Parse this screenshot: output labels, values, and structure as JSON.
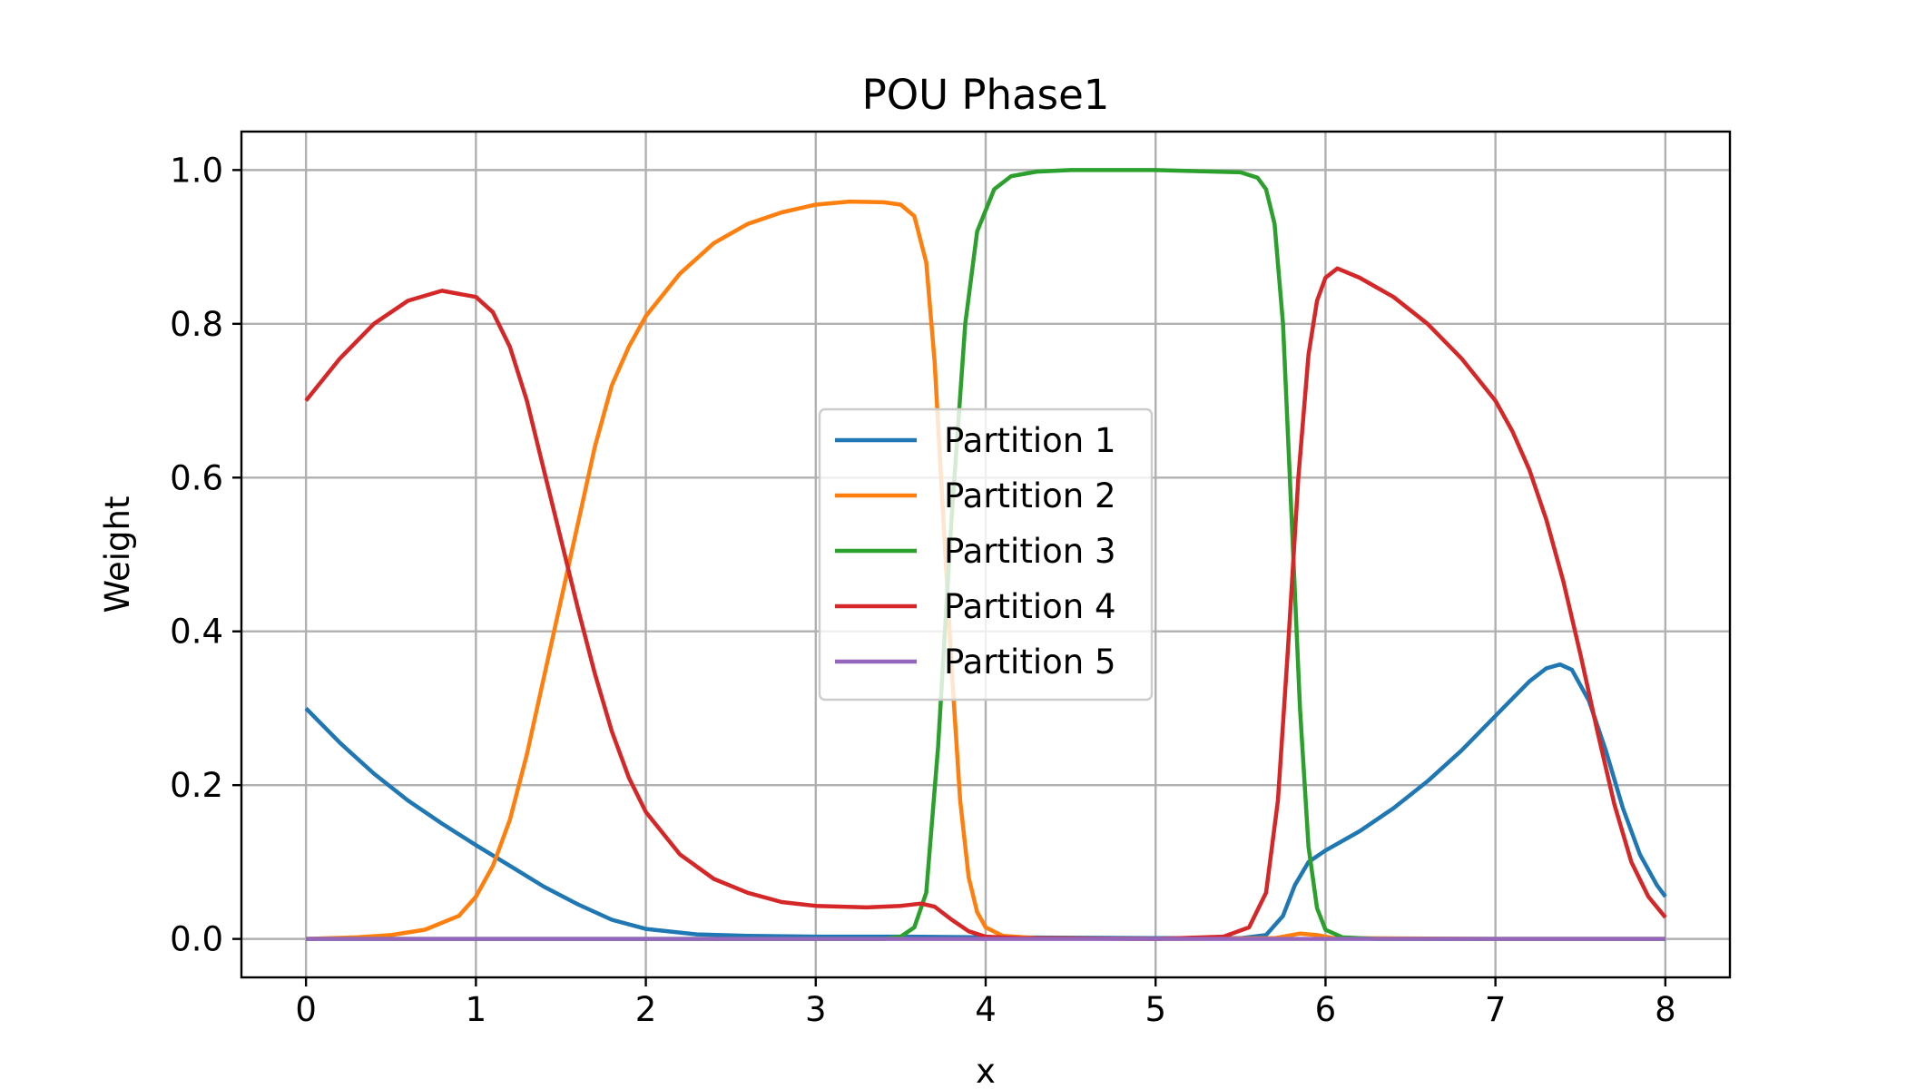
{
  "chart_data": {
    "type": "line",
    "title": "POU Phase1",
    "xlabel": "x",
    "ylabel": "Weight",
    "xlim": [
      -0.38,
      8.38
    ],
    "ylim": [
      -0.05,
      1.05
    ],
    "xticks": [
      0,
      1,
      2,
      3,
      4,
      5,
      6,
      7,
      8
    ],
    "xtick_labels": [
      "0",
      "1",
      "2",
      "3",
      "4",
      "5",
      "6",
      "7",
      "8"
    ],
    "yticks": [
      0.0,
      0.2,
      0.4,
      0.6,
      0.8,
      1.0
    ],
    "ytick_labels": [
      "0.0",
      "0.2",
      "0.4",
      "0.6",
      "0.8",
      "1.0"
    ],
    "grid": true,
    "legend_position": "center",
    "series": [
      {
        "name": "Partition 1",
        "color": "#1f77b4",
        "points": [
          [
            0,
            0.3
          ],
          [
            0.2,
            0.255
          ],
          [
            0.4,
            0.215
          ],
          [
            0.6,
            0.18
          ],
          [
            0.8,
            0.15
          ],
          [
            1.0,
            0.122
          ],
          [
            1.2,
            0.095
          ],
          [
            1.4,
            0.068
          ],
          [
            1.6,
            0.045
          ],
          [
            1.8,
            0.025
          ],
          [
            2.0,
            0.013
          ],
          [
            2.3,
            0.006
          ],
          [
            2.6,
            0.004
          ],
          [
            3.0,
            0.003
          ],
          [
            3.5,
            0.003
          ],
          [
            4.0,
            0.002
          ],
          [
            5.0,
            0.001
          ],
          [
            5.5,
            0.001
          ],
          [
            5.65,
            0.005
          ],
          [
            5.75,
            0.03
          ],
          [
            5.82,
            0.07
          ],
          [
            5.9,
            0.1
          ],
          [
            6.0,
            0.115
          ],
          [
            6.2,
            0.14
          ],
          [
            6.4,
            0.17
          ],
          [
            6.6,
            0.205
          ],
          [
            6.8,
            0.245
          ],
          [
            7.0,
            0.29
          ],
          [
            7.2,
            0.335
          ],
          [
            7.3,
            0.352
          ],
          [
            7.38,
            0.357
          ],
          [
            7.45,
            0.35
          ],
          [
            7.55,
            0.31
          ],
          [
            7.65,
            0.245
          ],
          [
            7.75,
            0.17
          ],
          [
            7.85,
            0.11
          ],
          [
            7.95,
            0.07
          ],
          [
            8.0,
            0.055
          ]
        ]
      },
      {
        "name": "Partition 2",
        "color": "#ff7f0e",
        "points": [
          [
            0,
            0.0
          ],
          [
            0.3,
            0.002
          ],
          [
            0.5,
            0.005
          ],
          [
            0.7,
            0.012
          ],
          [
            0.9,
            0.03
          ],
          [
            1.0,
            0.055
          ],
          [
            1.1,
            0.095
          ],
          [
            1.2,
            0.155
          ],
          [
            1.3,
            0.24
          ],
          [
            1.4,
            0.34
          ],
          [
            1.5,
            0.44
          ],
          [
            1.6,
            0.54
          ],
          [
            1.7,
            0.64
          ],
          [
            1.8,
            0.72
          ],
          [
            1.9,
            0.77
          ],
          [
            2.0,
            0.81
          ],
          [
            2.2,
            0.865
          ],
          [
            2.4,
            0.905
          ],
          [
            2.6,
            0.93
          ],
          [
            2.8,
            0.945
          ],
          [
            3.0,
            0.955
          ],
          [
            3.2,
            0.959
          ],
          [
            3.4,
            0.958
          ],
          [
            3.5,
            0.955
          ],
          [
            3.58,
            0.94
          ],
          [
            3.65,
            0.88
          ],
          [
            3.7,
            0.75
          ],
          [
            3.75,
            0.55
          ],
          [
            3.8,
            0.35
          ],
          [
            3.85,
            0.18
          ],
          [
            3.9,
            0.08
          ],
          [
            3.95,
            0.035
          ],
          [
            4.0,
            0.015
          ],
          [
            4.1,
            0.004
          ],
          [
            4.3,
            0.001
          ],
          [
            5.0,
            0.0
          ],
          [
            5.7,
            0.001
          ],
          [
            5.85,
            0.007
          ],
          [
            5.95,
            0.005
          ],
          [
            6.05,
            0.001
          ],
          [
            7.0,
            0.0
          ],
          [
            8.0,
            0.0
          ]
        ]
      },
      {
        "name": "Partition 3",
        "color": "#2ca02c",
        "points": [
          [
            0,
            0.0
          ],
          [
            3.4,
            0.0
          ],
          [
            3.5,
            0.003
          ],
          [
            3.58,
            0.015
          ],
          [
            3.65,
            0.06
          ],
          [
            3.72,
            0.25
          ],
          [
            3.8,
            0.55
          ],
          [
            3.88,
            0.8
          ],
          [
            3.95,
            0.92
          ],
          [
            4.05,
            0.975
          ],
          [
            4.15,
            0.992
          ],
          [
            4.3,
            0.998
          ],
          [
            4.5,
            1.0
          ],
          [
            5.0,
            1.0
          ],
          [
            5.5,
            0.997
          ],
          [
            5.6,
            0.99
          ],
          [
            5.65,
            0.975
          ],
          [
            5.7,
            0.93
          ],
          [
            5.75,
            0.8
          ],
          [
            5.8,
            0.55
          ],
          [
            5.85,
            0.3
          ],
          [
            5.9,
            0.12
          ],
          [
            5.95,
            0.04
          ],
          [
            6.0,
            0.012
          ],
          [
            6.1,
            0.002
          ],
          [
            6.3,
            0.0
          ],
          [
            8.0,
            0.0
          ]
        ]
      },
      {
        "name": "Partition 4",
        "color": "#d62728",
        "points": [
          [
            0,
            0.7
          ],
          [
            0.2,
            0.755
          ],
          [
            0.4,
            0.8
          ],
          [
            0.6,
            0.83
          ],
          [
            0.8,
            0.843
          ],
          [
            1.0,
            0.835
          ],
          [
            1.1,
            0.815
          ],
          [
            1.2,
            0.77
          ],
          [
            1.3,
            0.7
          ],
          [
            1.4,
            0.61
          ],
          [
            1.5,
            0.52
          ],
          [
            1.6,
            0.43
          ],
          [
            1.7,
            0.345
          ],
          [
            1.8,
            0.27
          ],
          [
            1.9,
            0.21
          ],
          [
            2.0,
            0.165
          ],
          [
            2.2,
            0.11
          ],
          [
            2.4,
            0.078
          ],
          [
            2.6,
            0.06
          ],
          [
            2.8,
            0.048
          ],
          [
            3.0,
            0.043
          ],
          [
            3.3,
            0.041
          ],
          [
            3.5,
            0.043
          ],
          [
            3.62,
            0.046
          ],
          [
            3.7,
            0.042
          ],
          [
            3.8,
            0.025
          ],
          [
            3.9,
            0.01
          ],
          [
            4.0,
            0.003
          ],
          [
            4.2,
            0.001
          ],
          [
            5.0,
            0.0
          ],
          [
            5.4,
            0.003
          ],
          [
            5.55,
            0.015
          ],
          [
            5.65,
            0.06
          ],
          [
            5.72,
            0.18
          ],
          [
            5.78,
            0.38
          ],
          [
            5.84,
            0.6
          ],
          [
            5.9,
            0.76
          ],
          [
            5.95,
            0.83
          ],
          [
            6.0,
            0.86
          ],
          [
            6.07,
            0.872
          ],
          [
            6.2,
            0.86
          ],
          [
            6.4,
            0.835
          ],
          [
            6.6,
            0.8
          ],
          [
            6.8,
            0.755
          ],
          [
            7.0,
            0.7
          ],
          [
            7.1,
            0.66
          ],
          [
            7.2,
            0.61
          ],
          [
            7.3,
            0.545
          ],
          [
            7.4,
            0.465
          ],
          [
            7.5,
            0.37
          ],
          [
            7.6,
            0.27
          ],
          [
            7.7,
            0.175
          ],
          [
            7.8,
            0.1
          ],
          [
            7.9,
            0.055
          ],
          [
            8.0,
            0.028
          ]
        ]
      },
      {
        "name": "Partition 5",
        "color": "#9467bd",
        "points": [
          [
            0,
            0.0
          ],
          [
            8.0,
            0.0
          ]
        ]
      }
    ]
  }
}
